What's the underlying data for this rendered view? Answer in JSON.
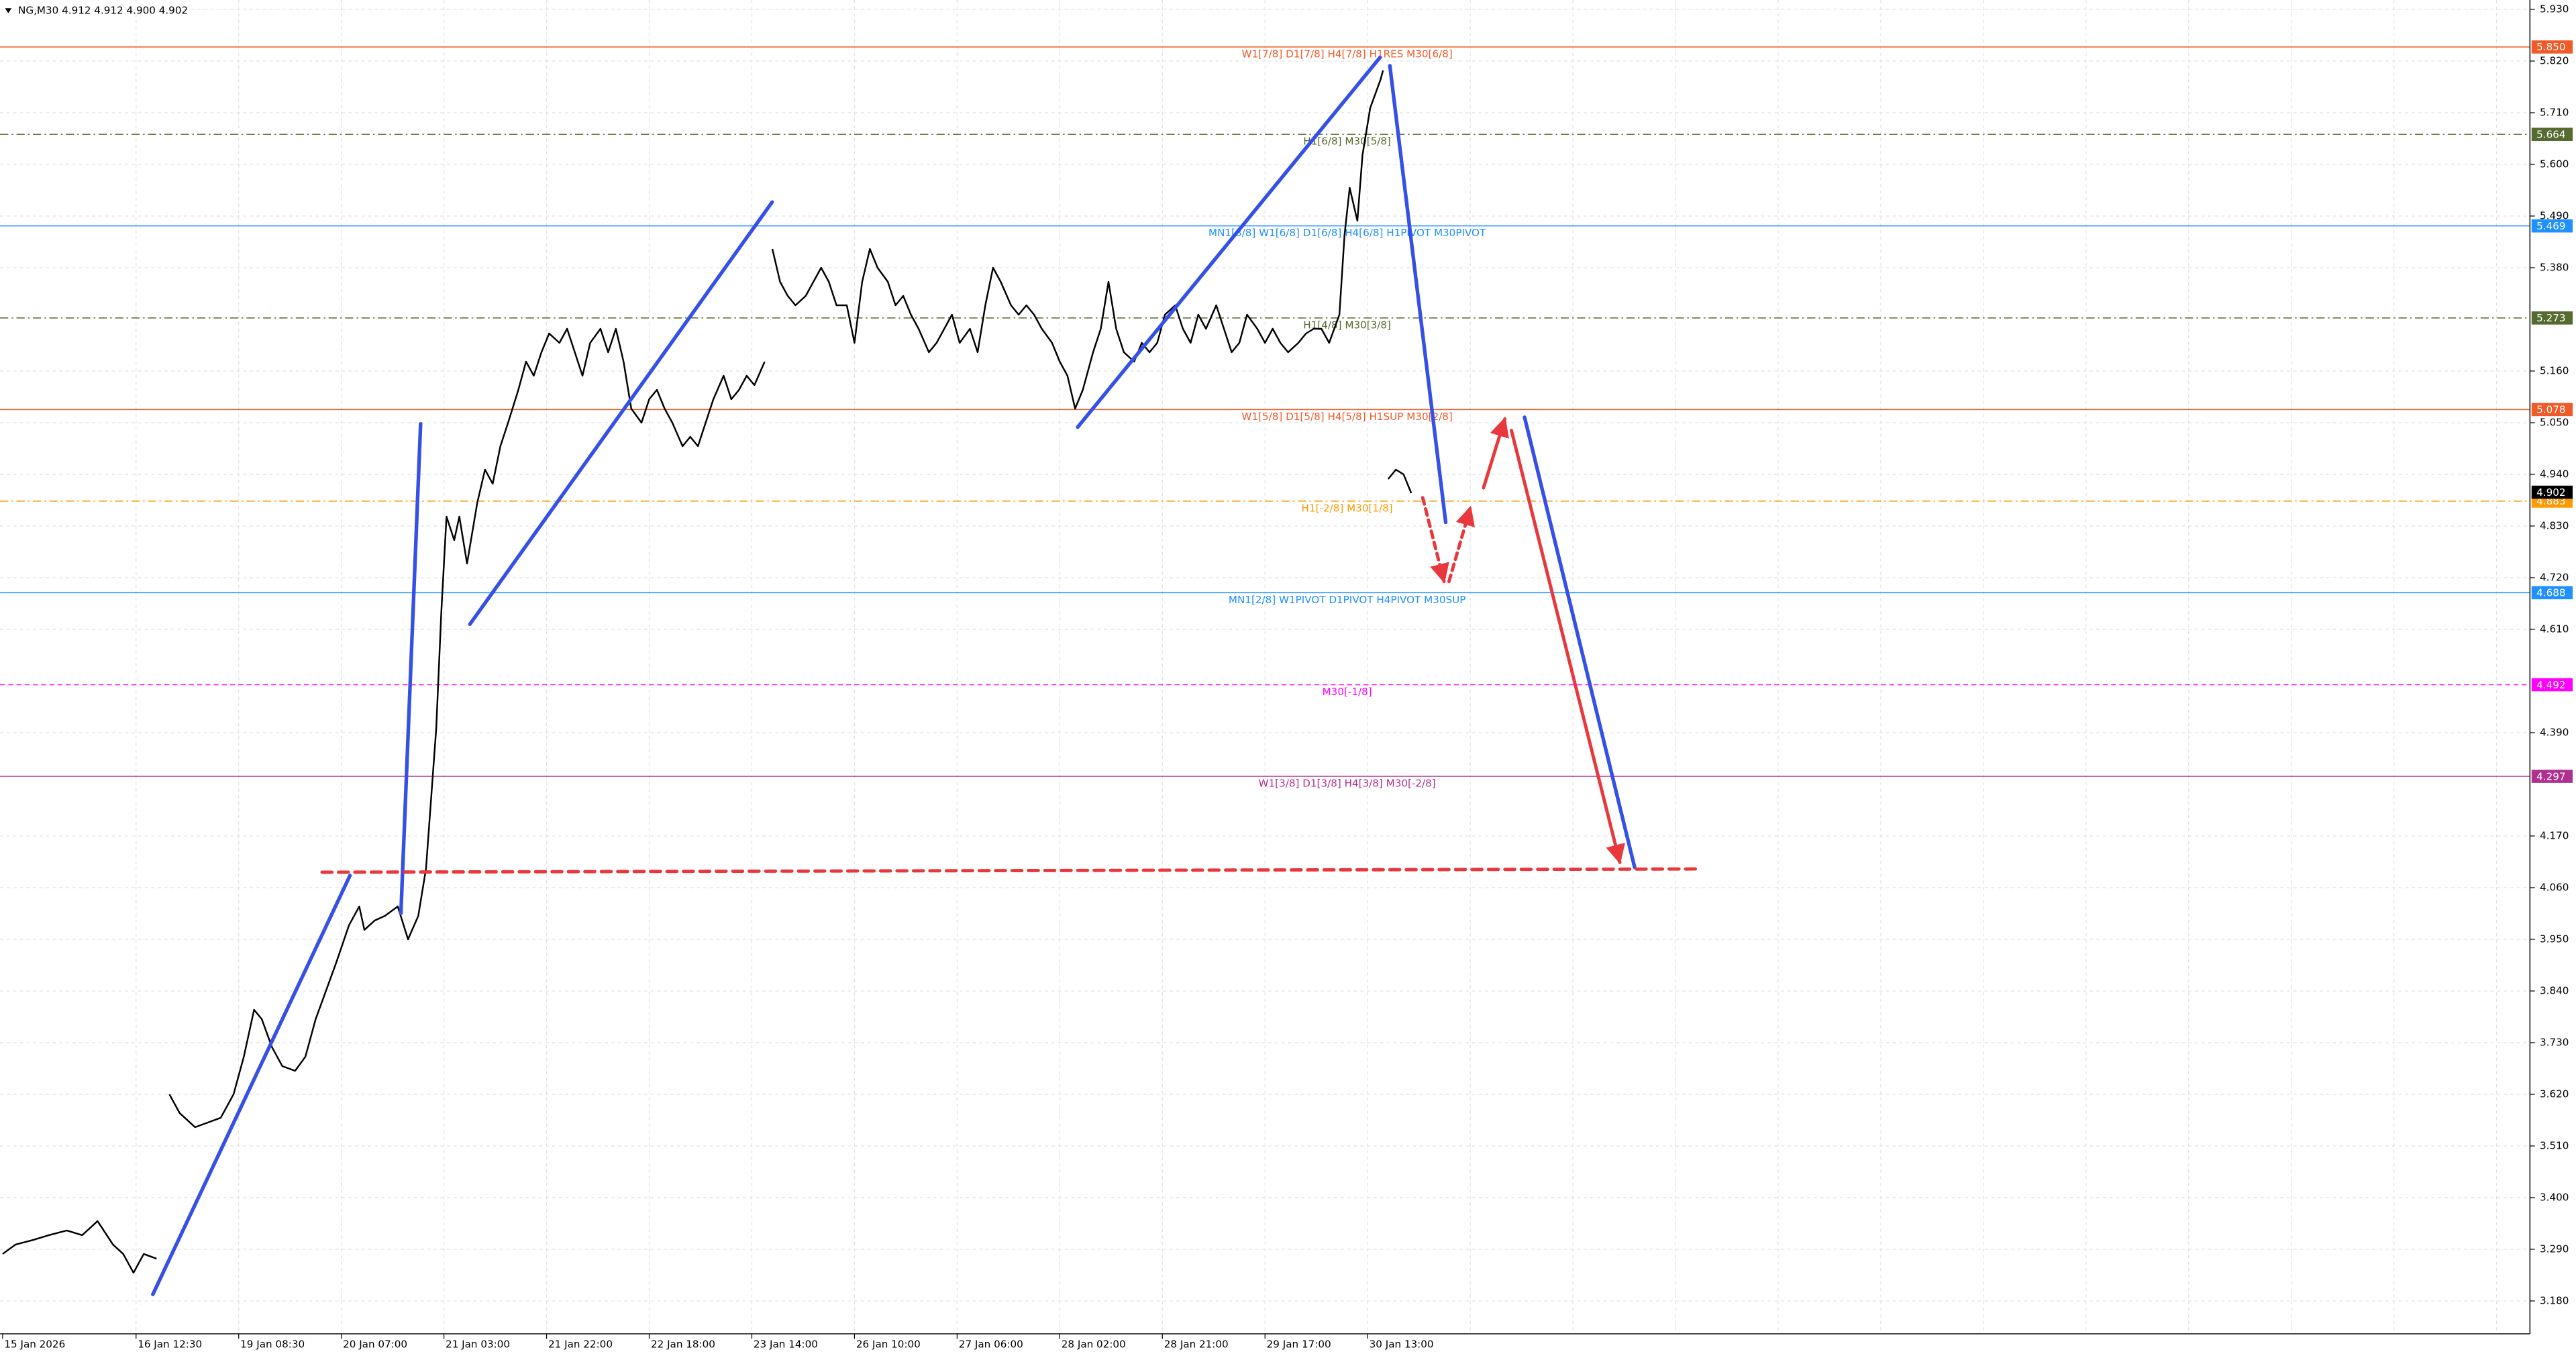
{
  "chart_data": {
    "type": "price-line",
    "header": "NG,M30  4.912 4.912 4.900 4.902",
    "color": "#000000",
    "x": [
      1,
      6,
      13,
      19,
      26,
      32,
      38,
      44,
      48,
      52,
      56,
      61,
      64,
      66,
      70,
      76,
      81,
      86,
      91,
      95,
      99,
      102,
      106,
      110,
      115,
      119,
      123,
      127,
      131,
      136,
      140,
      142,
      146,
      150,
      155,
      159,
      163,
      166,
      170,
      172,
      174,
      177,
      179,
      182,
      186,
      189,
      192,
      195,
      198,
      202,
      205,
      208,
      211,
      214,
      218,
      221,
      224,
      227,
      230,
      234,
      237,
      240,
      243,
      246,
      250,
      253,
      256,
      259,
      262,
      266,
      269,
      272,
      275,
      278,
      282,
      285,
      288,
      291,
      294,
      298,
      299,
      301,
      304,
      307,
      310,
      314,
      317,
      320,
      323,
      326,
      330,
      333,
      336,
      339,
      342,
      346,
      349,
      352,
      355,
      358,
      362,
      365,
      368,
      371,
      374,
      378,
      381,
      384,
      387,
      390,
      394,
      397,
      400,
      403,
      406,
      410,
      413,
      416,
      419,
      422,
      426,
      429,
      432,
      435,
      438,
      442,
      445,
      448,
      451,
      454,
      458,
      461,
      464,
      467,
      470,
      474,
      477,
      480,
      483,
      486,
      490,
      493,
      496,
      499,
      502,
      506,
      509,
      512,
      515,
      518,
      522,
      524,
      526,
      529,
      531,
      534,
      538,
      539,
      540,
      541,
      544,
      547,
      550
    ],
    "values": [
      3.28,
      3.3,
      3.31,
      3.32,
      3.33,
      3.32,
      3.35,
      3.3,
      3.28,
      3.24,
      3.28,
      3.27,
      null,
      3.62,
      3.58,
      3.55,
      3.56,
      3.57,
      3.62,
      3.7,
      3.8,
      3.78,
      3.72,
      3.68,
      3.67,
      3.7,
      3.78,
      3.84,
      3.9,
      3.98,
      4.02,
      3.97,
      3.99,
      4.0,
      4.02,
      3.95,
      4.0,
      4.1,
      4.4,
      4.65,
      4.85,
      4.8,
      4.85,
      4.75,
      4.88,
      4.95,
      4.92,
      5.0,
      5.05,
      5.12,
      5.18,
      5.15,
      5.2,
      5.24,
      5.22,
      5.25,
      5.2,
      5.15,
      5.22,
      5.25,
      5.2,
      5.25,
      5.18,
      5.08,
      5.05,
      5.1,
      5.12,
      5.08,
      5.05,
      5.0,
      5.02,
      5.0,
      5.05,
      5.1,
      5.15,
      5.1,
      5.12,
      5.15,
      5.13,
      5.18,
      null,
      5.42,
      5.35,
      5.32,
      5.3,
      5.32,
      5.35,
      5.38,
      5.35,
      5.3,
      5.3,
      5.22,
      5.35,
      5.42,
      5.38,
      5.35,
      5.3,
      5.32,
      5.28,
      5.25,
      5.2,
      5.22,
      5.25,
      5.28,
      5.22,
      5.25,
      5.2,
      5.3,
      5.38,
      5.35,
      5.3,
      5.28,
      5.3,
      5.28,
      5.25,
      5.22,
      5.18,
      5.15,
      5.08,
      5.12,
      5.2,
      5.25,
      5.35,
      5.25,
      5.2,
      5.18,
      5.22,
      5.2,
      5.22,
      5.28,
      5.3,
      5.25,
      5.22,
      5.28,
      5.25,
      5.3,
      5.25,
      5.2,
      5.22,
      5.28,
      5.25,
      5.22,
      5.25,
      5.22,
      5.2,
      5.22,
      5.24,
      5.25,
      5.25,
      5.22,
      5.28,
      5.45,
      5.55,
      5.48,
      5.62,
      5.72,
      5.78,
      5.8,
      null,
      4.93,
      4.95,
      4.94,
      4.9
    ],
    "xlim": [
      0,
      986
    ],
    "xticks": [
      {
        "value": 1,
        "label": "15 Jan 2026"
      },
      {
        "value": 53,
        "label": "16 Jan 12:30"
      },
      {
        "value": 93,
        "label": "19 Jan 08:30"
      },
      {
        "value": 133,
        "label": "20 Jan 07:00"
      },
      {
        "value": 173,
        "label": "21 Jan 03:00"
      },
      {
        "value": 213,
        "label": "21 Jan 22:00"
      },
      {
        "value": 253,
        "label": "22 Jan 18:00"
      },
      {
        "value": 293,
        "label": "23 Jan 14:00"
      },
      {
        "value": 333,
        "label": "26 Jan 10:00"
      },
      {
        "value": 373,
        "label": "27 Jan 06:00"
      },
      {
        "value": 413,
        "label": "28 Jan 02:00"
      },
      {
        "value": 453,
        "label": "28 Jan 21:00"
      },
      {
        "value": 493,
        "label": "29 Jan 17:00"
      },
      {
        "value": 533,
        "label": "30 Jan 13:00"
      }
    ],
    "ylim": [
      3.11,
      5.95
    ],
    "yticks": [
      {
        "value": 5.93,
        "label": "5.930"
      },
      {
        "value": 5.82,
        "label": "5.820"
      },
      {
        "value": 5.71,
        "label": "5.710"
      },
      {
        "value": 5.6,
        "label": "5.600"
      },
      {
        "value": 5.49,
        "label": "5.490"
      },
      {
        "value": 5.38,
        "label": "5.380"
      },
      {
        "value": 5.16,
        "label": "5.160"
      },
      {
        "value": 5.05,
        "label": "5.050"
      },
      {
        "value": 4.94,
        "label": "4.940"
      },
      {
        "value": 4.83,
        "label": "4.830"
      },
      {
        "value": 4.72,
        "label": "4.720"
      },
      {
        "value": 4.61,
        "label": "4.610"
      },
      {
        "value": 4.39,
        "label": "4.390"
      },
      {
        "value": 4.17,
        "label": "4.170"
      },
      {
        "value": 4.06,
        "label": "4.060"
      },
      {
        "value": 3.95,
        "label": "3.950"
      },
      {
        "value": 3.84,
        "label": "3.840"
      },
      {
        "value": 3.73,
        "label": "3.730"
      },
      {
        "value": 3.62,
        "label": "3.620"
      },
      {
        "value": 3.51,
        "label": "3.510"
      },
      {
        "value": 3.4,
        "label": "3.400"
      },
      {
        "value": 3.29,
        "label": "3.290"
      },
      {
        "value": 3.18,
        "label": "3.180"
      }
    ],
    "grid": true,
    "levels": [
      {
        "price": 5.85,
        "price_label": "5.850",
        "text": "W1[7/8] D1[7/8] H4[7/8] H1RES M30[6/8]",
        "color": "#f05a28",
        "style": "solid"
      },
      {
        "price": 5.664,
        "price_label": "5.664",
        "text": "H1[6/8] M30[5/8]",
        "color": "#556b2f",
        "style": "dashdot"
      },
      {
        "price": 5.469,
        "price_label": "5.469",
        "text": "MN1[3/8] W1[6/8] D1[6/8] H4[6/8] H1PIVOT M30PIVOT",
        "color": "#1e90ff",
        "style": "solid"
      },
      {
        "price": 5.273,
        "price_label": "5.273",
        "text": "H1[4/8] M30[3/8]",
        "color": "#556b2f",
        "style": "dashdot"
      },
      {
        "price": 5.078,
        "price_label": "5.078",
        "text": "W1[5/8] D1[5/8] H4[5/8] H1SUP M30[2/8]",
        "color": "#f05a28",
        "style": "solid"
      },
      {
        "price": 4.883,
        "price_label": "4.883",
        "text": "H1[-2/8] M30[1/8]",
        "color": "#ff9900",
        "style": "dashdot"
      },
      {
        "price": 4.688,
        "price_label": "4.688",
        "text": "MN1[2/8] W1PIVOT D1PIVOT H4PIVOT M30SUP",
        "color": "#1e90ff",
        "style": "solid"
      },
      {
        "price": 4.492,
        "price_label": "4.492",
        "text": "M30[-1/8]",
        "color": "#ff00ff",
        "style": "dashed"
      },
      {
        "price": 4.297,
        "price_label": "4.297",
        "text": "W1[3/8] D1[3/8] H4[3/8] M30[-2/8]",
        "color": "#b03090",
        "style": "solid"
      }
    ],
    "last_price": 4.902
  }
}
